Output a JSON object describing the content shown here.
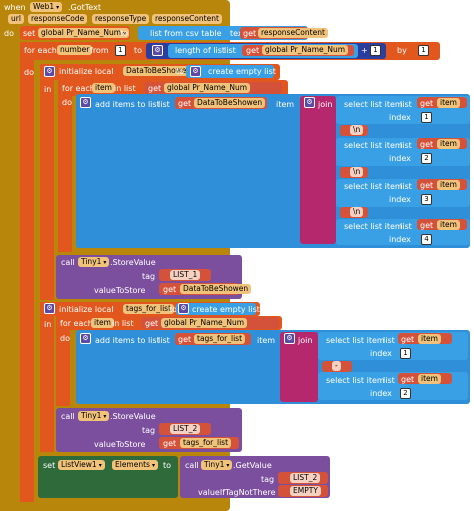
{
  "event": {
    "when": "when",
    "component": "Web1",
    "event_name": ".GotText",
    "params": [
      "url",
      "responseCode",
      "responseType",
      "responseContent"
    ]
  },
  "do": "do",
  "set_global": {
    "set": "set",
    "var": "global Pr_Name_Num",
    "to": "to",
    "func": "list from csv table",
    "text": "text",
    "get": "get",
    "arg": "responseContent"
  },
  "foreach1": {
    "label": "for each",
    "var": "number",
    "from": "from",
    "from_val": "1",
    "to": "to",
    "len_label": "length of list",
    "list": "list",
    "get": "get",
    "getvar": "global Pr_Name_Num",
    "plus": "+",
    "one": "1",
    "by": "by",
    "by_val": "1"
  },
  "init1": {
    "do": "do",
    "label": "initialize local",
    "var": "DataToBeShowen",
    "to": "to",
    "create": "create empty list",
    "in": "in"
  },
  "foreach2": {
    "label": "for each",
    "var": "item",
    "inlist": "in list",
    "get": "get",
    "getvar": "global Pr_Name_Num",
    "do": "do"
  },
  "additems1": {
    "label": "add items to list",
    "list": "list",
    "get": "get",
    "getvar": "DataToBeShowen",
    "item": "item",
    "join": "join",
    "rows": [
      {
        "select": "select list item",
        "list": "list",
        "get": "get",
        "var": "item",
        "index": "index",
        "num": "1"
      },
      {
        "str": "\\n"
      },
      {
        "select": "select list item",
        "list": "list",
        "get": "get",
        "var": "item",
        "index": "index",
        "num": "2"
      },
      {
        "str": "\\n"
      },
      {
        "select": "select list item",
        "list": "list",
        "get": "get",
        "var": "item",
        "index": "index",
        "num": "3"
      },
      {
        "str": "\\n"
      },
      {
        "select": "select list item",
        "list": "list",
        "get": "get",
        "var": "item",
        "index": "index",
        "num": "4"
      }
    ]
  },
  "store1": {
    "call": "call",
    "comp": "Tiny1",
    "method": ".StoreValue",
    "tag": "tag",
    "tagval": "LIST_1",
    "vts": "valueToStore",
    "get": "get",
    "getvar": "DataToBeShowen"
  },
  "init2": {
    "label": "initialize local",
    "var": "tags_for_list",
    "to": "to",
    "create": "create empty list",
    "in": "in"
  },
  "foreach3": {
    "label": "for each",
    "var": "item",
    "inlist": "in list",
    "get": "get",
    "getvar": "global Pr_Name_Num",
    "do": "do"
  },
  "additems2": {
    "label": "add items to list",
    "list": "list",
    "get": "get",
    "getvar": "tags_for_list",
    "item": "item",
    "join": "join",
    "rows": [
      {
        "select": "select list item",
        "list": "list",
        "get": "get",
        "var": "item",
        "index": "index",
        "num": "1"
      },
      {
        "str": "-"
      },
      {
        "select": "select list item",
        "list": "list",
        "get": "get",
        "var": "item",
        "index": "index",
        "num": "2"
      }
    ]
  },
  "store2": {
    "call": "call",
    "comp": "Tiny1",
    "method": ".StoreValue",
    "tag": "tag",
    "tagval": "LIST_2",
    "vts": "valueToStore",
    "get": "get",
    "getvar": "tags_for_list"
  },
  "setlv": {
    "set": "set",
    "comp": "ListView1",
    "prop": "Elements",
    "to": "to",
    "call": "call",
    "tiny": "Tiny1",
    "method": ".GetValue",
    "tag": "tag",
    "tagval": "LIST_2",
    "vint": "valueIfTagNotThere",
    "empty": "EMPTY"
  }
}
